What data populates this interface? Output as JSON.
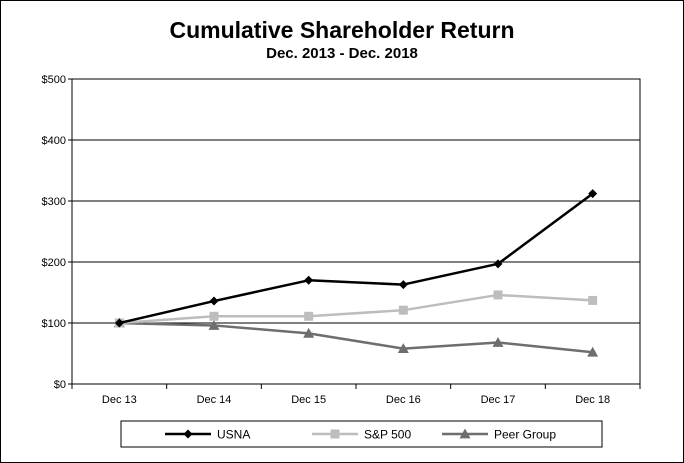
{
  "chart_data": {
    "type": "line",
    "title": "Cumulative Shareholder Return",
    "subtitle": "Dec. 2013 - Dec. 2018",
    "xlabel": "",
    "ylabel": "",
    "categories": [
      "Dec 13",
      "Dec 14",
      "Dec 15",
      "Dec 16",
      "Dec 17",
      "Dec 18"
    ],
    "y_ticks": [
      0,
      100,
      200,
      300,
      400,
      500
    ],
    "y_tick_labels": [
      "$0",
      "$100",
      "$200",
      "$300",
      "$400",
      "$500"
    ],
    "ylim": [
      0,
      500
    ],
    "grid": true,
    "legend_position": "bottom",
    "series": [
      {
        "name": "USNA",
        "marker": "diamond",
        "color": "#000000",
        "values": [
          100,
          136,
          170,
          163,
          197,
          312
        ]
      },
      {
        "name": "S&P 500",
        "marker": "square",
        "color": "#bdbdbd",
        "values": [
          100,
          111,
          111,
          121,
          146,
          137
        ]
      },
      {
        "name": "Peer Group",
        "marker": "triangle",
        "color": "#6e6e6e",
        "values": [
          100,
          96,
          83,
          58,
          68,
          52
        ]
      }
    ]
  }
}
